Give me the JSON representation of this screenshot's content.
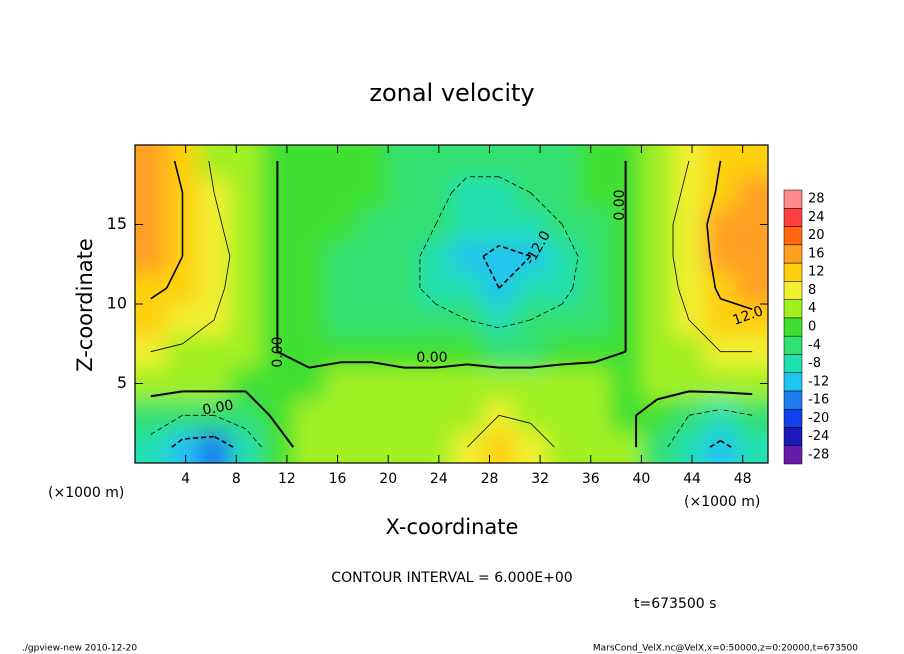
{
  "chart_data": {
    "type": "heatmap",
    "title": "zonal velocity",
    "x_label": "X-coordinate",
    "y_label": "Z-coordinate",
    "x_unit": "(×1000 m)",
    "xlim": [
      0,
      50
    ],
    "ylim": [
      0,
      20
    ],
    "xticks": [
      4,
      8,
      12,
      16,
      20,
      24,
      28,
      32,
      36,
      40,
      44,
      48
    ],
    "yticks": [
      5,
      10,
      15
    ],
    "x": [
      1.25,
      3.75,
      6.25,
      8.75,
      11.25,
      13.75,
      16.25,
      18.75,
      21.25,
      23.75,
      26.25,
      28.75,
      31.25,
      33.75,
      36.25,
      38.75,
      41.25,
      43.75,
      46.25,
      48.75
    ],
    "y": [
      1,
      3,
      5,
      7,
      9,
      11,
      13,
      15,
      17,
      19
    ],
    "z": [
      [
        -8,
        -14,
        -15,
        -10,
        -2,
        2,
        2,
        3,
        4,
        4,
        6,
        10,
        9,
        5,
        4,
        2,
        -4,
        -10,
        -13,
        -10
      ],
      [
        -3,
        -6,
        -6,
        -3,
        1,
        3,
        3,
        4,
        4,
        4,
        5,
        6,
        5,
        5,
        4,
        1,
        -2,
        -6,
        -8,
        -6
      ],
      [
        2,
        2,
        2,
        1,
        0,
        1,
        2,
        2,
        2,
        2,
        3,
        3,
        3,
        3,
        2,
        0,
        2,
        2,
        3,
        3
      ],
      [
        6,
        5,
        4,
        2,
        0,
        -1,
        -1,
        -1,
        -2,
        -2,
        -2,
        -3,
        -3,
        -2,
        -1,
        0,
        3,
        4,
        6,
        6
      ],
      [
        10,
        9,
        6,
        3,
        0,
        -2,
        -3,
        -3,
        -4,
        -5,
        -6,
        -7,
        -6,
        -5,
        -3,
        0,
        4,
        6,
        10,
        11
      ],
      [
        13,
        11,
        7,
        4,
        0,
        -2,
        -3,
        -4,
        -5,
        -7,
        -10,
        -12,
        -10,
        -7,
        -4,
        0,
        4,
        7,
        13,
        14
      ],
      [
        14,
        12,
        8,
        4,
        0,
        -2,
        -3,
        -4,
        -5,
        -7,
        -11,
        -13,
        -12,
        -8,
        -4,
        0,
        4,
        8,
        14,
        15
      ],
      [
        15,
        12,
        7,
        3,
        0,
        -1,
        -2,
        -3,
        -4,
        -6,
        -9,
        -10,
        -8,
        -6,
        -3,
        0,
        4,
        8,
        15,
        15
      ],
      [
        16,
        12,
        6,
        3,
        0,
        -1,
        -2,
        -2,
        -3,
        -5,
        -7,
        -7,
        -6,
        -4,
        -2,
        0,
        3,
        7,
        13,
        14
      ],
      [
        15,
        11,
        5,
        2,
        0,
        -1,
        -1,
        -2,
        -3,
        -4,
        -5,
        -5,
        -4,
        -3,
        -1,
        0,
        3,
        6,
        12,
        13
      ]
    ],
    "color_levels": [
      -28,
      -24,
      -20,
      -16,
      -12,
      -8,
      -4,
      0,
      4,
      8,
      12,
      16,
      20,
      24,
      28
    ],
    "colors": [
      "#6a1aa8",
      "#1a1ab8",
      "#1040e8",
      "#1c7cf0",
      "#20c4f0",
      "#20e0b0",
      "#30e070",
      "#40e030",
      "#a0f020",
      "#f0f030",
      "#ffd010",
      "#ffa020",
      "#ff6a10",
      "#ff4040",
      "#ff8a8a"
    ],
    "contour_levels": [
      -12,
      -6,
      0,
      6,
      12
    ],
    "contour_labels": [
      {
        "value": 0,
        "label": "0.00"
      },
      {
        "value": -12,
        "label": "-12.0"
      },
      {
        "value": 12,
        "label": "12.0"
      }
    ],
    "contour_interval": "CONTOUR INTERVAL = 6.000E+00",
    "time_label": "t=673500 s",
    "footer_left": "./gpview-new  2010-12-20",
    "footer_right": "MarsCond_VelX.nc@VelX,x=0:50000,z=0:20000,t=673500"
  }
}
